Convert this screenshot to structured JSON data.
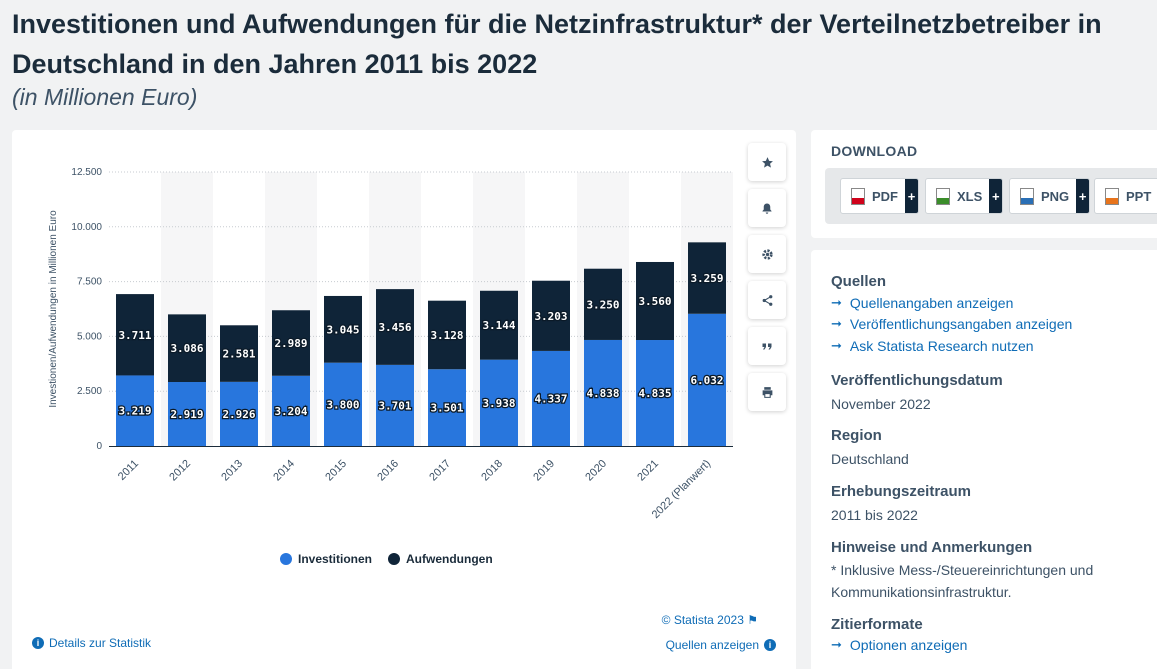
{
  "header": {
    "title": "Investitionen und Aufwendungen für die Netzinfrastruktur* der Verteilnetzbetreiber in Deutschland in den Jahren 2011 bis 2022",
    "subtitle": "(in Millionen Euro)"
  },
  "chart_data": {
    "type": "bar",
    "stacked": true,
    "title": "Investitionen und Aufwendungen für die Netzinfrastruktur* der Verteilnetzbetreiber in Deutschland in den Jahren 2011 bis 2022",
    "xlabel": "",
    "ylabel": "Investionen/Aufwendungen in Millionen Euro",
    "ylim": [
      0,
      12500
    ],
    "yticks": [
      0,
      2500,
      5000,
      7500,
      10000,
      12500
    ],
    "ytick_labels": [
      "0",
      "2.500",
      "5.000",
      "7.500",
      "10.000",
      "12.500"
    ],
    "categories": [
      "2011",
      "2012",
      "2013",
      "2014",
      "2015",
      "2016",
      "2017",
      "2018",
      "2019",
      "2020",
      "2021",
      "2022 (Planwert)"
    ],
    "series": [
      {
        "name": "Investitionen",
        "color": "#2876dd",
        "values": [
          3219,
          2919,
          2926,
          3204,
          3800,
          3701,
          3501,
          3938,
          4337,
          4838,
          4835,
          6032
        ],
        "labels": [
          "3.219",
          "2.919",
          "2.926",
          "3.204",
          "3.800",
          "3.701",
          "3.501",
          "3.938",
          "4.337",
          "4.838",
          "4.835",
          "6.032"
        ]
      },
      {
        "name": "Aufwendungen",
        "color": "#0f2438",
        "values": [
          3711,
          3086,
          2581,
          2989,
          3045,
          3456,
          3128,
          3144,
          3203,
          3250,
          3560,
          3259
        ],
        "labels": [
          "3.711",
          "3.086",
          "2.581",
          "2.989",
          "3.045",
          "3.456",
          "3.128",
          "3.144",
          "3.203",
          "3.250",
          "3.560",
          "3.259"
        ]
      }
    ],
    "legend_position": "bottom",
    "grid": true
  },
  "chart_footer": {
    "credit": "© Statista 2023",
    "details_link": "Details zur Statistik",
    "sources_link": "Quellen anzeigen"
  },
  "download": {
    "title": "DOWNLOAD",
    "buttons": [
      {
        "label": "PDF",
        "color": "#d0021b"
      },
      {
        "label": "XLS",
        "color": "#3b8d2a"
      },
      {
        "label": "PNG",
        "color": "#2a6fb5"
      },
      {
        "label": "PPT",
        "color": "#e8741c"
      }
    ]
  },
  "info": {
    "sources_title": "Quellen",
    "source_links": [
      "Quellenangaben anzeigen",
      "Veröffentlichungsangaben anzeigen",
      "Ask Statista Research nutzen"
    ],
    "publication_date_title": "Veröffentlichungsdatum",
    "publication_date": "November 2022",
    "region_title": "Region",
    "region": "Deutschland",
    "survey_period_title": "Erhebungszeitraum",
    "survey_period": "2011 bis 2022",
    "notes_title": "Hinweise und Anmerkungen",
    "notes": "* Inklusive Mess-/Steuereinrichtungen und Kommunikationsinfrastruktur.",
    "citation_title": "Zitierformate",
    "citation_link": "Optionen anzeigen"
  }
}
